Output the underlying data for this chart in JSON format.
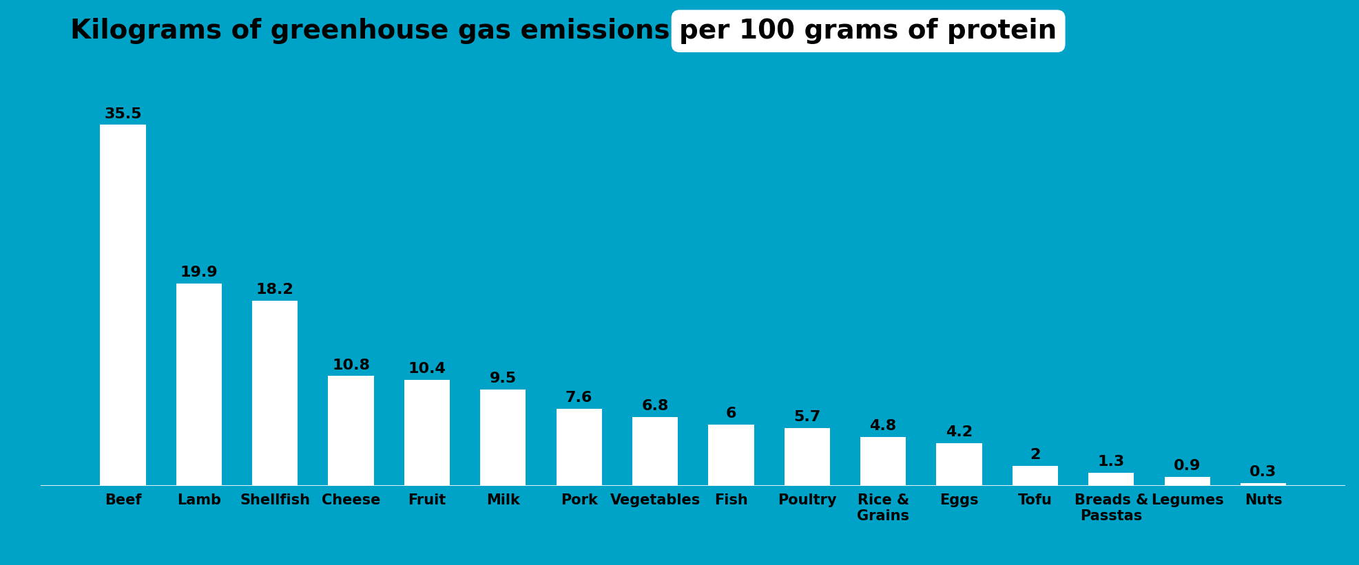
{
  "categories": [
    "Beef",
    "Lamb",
    "Shellfish",
    "Cheese",
    "Fruit",
    "Milk",
    "Pork",
    "Vegetables",
    "Fish",
    "Poultry",
    "Rice &\nGrains",
    "Eggs",
    "Tofu",
    "Breads &\nPasstas",
    "Legumes",
    "Nuts"
  ],
  "categories_display": [
    "Beef",
    "Lamb",
    "Shellfish",
    "Cheese",
    "Fruit",
    "Milk",
    "Pork",
    "Vegetables",
    "Fish",
    "Poultry",
    "Rice &\nGrains",
    "Eggs",
    "Tofu",
    "Breads &\nPasstas",
    "Legumes",
    "Nuts"
  ],
  "values": [
    35.5,
    19.9,
    18.2,
    10.8,
    10.4,
    9.5,
    7.6,
    6.8,
    6,
    5.7,
    4.8,
    4.2,
    2,
    1.3,
    0.9,
    0.3
  ],
  "value_labels": [
    "35.5",
    "19.9",
    "18.2",
    "10.8",
    "10.4",
    "9.5",
    "7.6",
    "6.8",
    "6",
    "5.7",
    "4.8",
    "4.2",
    "2",
    "1.3",
    "0.9",
    "0.3"
  ],
  "bar_color": "#ffffff",
  "background_color": "#00a3c8",
  "title_main": "Kilograms of greenhouse gas emissions ",
  "title_highlight": "per 100 grams of protein",
  "title_fontsize": 28,
  "label_fontsize": 16,
  "tick_fontsize": 15,
  "ylim": [
    0,
    40
  ]
}
